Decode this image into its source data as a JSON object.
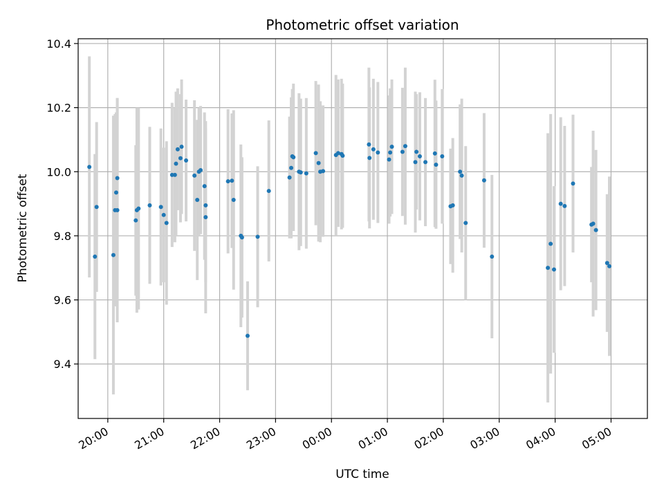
{
  "chart_data": {
    "type": "scatter",
    "title": "Photometric offset variation",
    "xlabel": "UTC time",
    "ylabel": "Photometric offset",
    "x_unit": "hours since 19:00 UTC",
    "xlim": [
      0.47,
      10.65
    ],
    "ylim": [
      9.23,
      10.415
    ],
    "grid": true,
    "colors": {
      "point": "#1f77b4",
      "errorbar": "#d3d3d3",
      "grid": "#b0b0b0"
    },
    "x_ticks": [
      {
        "x": 1,
        "label": "20:00"
      },
      {
        "x": 2,
        "label": "21:00"
      },
      {
        "x": 3,
        "label": "22:00"
      },
      {
        "x": 4,
        "label": "23:00"
      },
      {
        "x": 5,
        "label": "00:00"
      },
      {
        "x": 6,
        "label": "01:00"
      },
      {
        "x": 7,
        "label": "02:00"
      },
      {
        "x": 8,
        "label": "03:00"
      },
      {
        "x": 9,
        "label": "04:00"
      },
      {
        "x": 10,
        "label": "05:00"
      }
    ],
    "y_ticks": [
      {
        "y": 9.4,
        "label": "9.4"
      },
      {
        "y": 9.6,
        "label": "9.6"
      },
      {
        "y": 9.8,
        "label": "9.8"
      },
      {
        "y": 10.0,
        "label": "10.0"
      },
      {
        "y": 10.2,
        "label": "10.2"
      },
      {
        "y": 10.4,
        "label": "10.4"
      }
    ],
    "points": [
      [
        0.67,
        10.015,
        0.345
      ],
      [
        0.77,
        9.735,
        0.32
      ],
      [
        0.8,
        9.89,
        0.265
      ],
      [
        1.1,
        9.74,
        0.435
      ],
      [
        1.13,
        9.88,
        0.3
      ],
      [
        1.15,
        9.935,
        0.25
      ],
      [
        1.17,
        9.88,
        0.35
      ],
      [
        1.17,
        9.98,
        0.25
      ],
      [
        1.5,
        9.848,
        0.235
      ],
      [
        1.52,
        9.88,
        0.32
      ],
      [
        1.55,
        9.885,
        0.315
      ],
      [
        1.75,
        9.895,
        0.245
      ],
      [
        1.95,
        9.89,
        0.245
      ],
      [
        2.0,
        9.865,
        0.21
      ],
      [
        2.05,
        9.84,
        0.255
      ],
      [
        2.15,
        9.99,
        0.225
      ],
      [
        2.2,
        9.99,
        0.21
      ],
      [
        2.22,
        10.025,
        0.225
      ],
      [
        2.25,
        10.07,
        0.19
      ],
      [
        2.3,
        10.042,
        0.2
      ],
      [
        2.32,
        10.078,
        0.21
      ],
      [
        2.4,
        10.035,
        0.19
      ],
      [
        2.55,
        9.988,
        0.235
      ],
      [
        2.6,
        9.912,
        0.25
      ],
      [
        2.63,
        10.0,
        0.2
      ],
      [
        2.66,
        10.005,
        0.2
      ],
      [
        2.73,
        9.955,
        0.23
      ],
      [
        2.75,
        9.858,
        0.3
      ],
      [
        2.75,
        9.895,
        0.24
      ],
      [
        3.15,
        9.97,
        0.225
      ],
      [
        3.22,
        9.972,
        0.21
      ],
      [
        3.25,
        9.912,
        0.28
      ],
      [
        3.38,
        9.8,
        0.285
      ],
      [
        3.4,
        9.795,
        0.25
      ],
      [
        3.5,
        9.488,
        0.17
      ],
      [
        3.68,
        9.797,
        0.22
      ],
      [
        3.88,
        9.94,
        0.22
      ],
      [
        4.25,
        9.982,
        0.19
      ],
      [
        4.28,
        10.012,
        0.22
      ],
      [
        4.3,
        10.048,
        0.21
      ],
      [
        4.32,
        10.045,
        0.23
      ],
      [
        4.42,
        10.0,
        0.245
      ],
      [
        4.45,
        9.998,
        0.23
      ],
      [
        4.55,
        9.995,
        0.235
      ],
      [
        4.72,
        10.058,
        0.225
      ],
      [
        4.77,
        10.027,
        0.245
      ],
      [
        4.8,
        10.0,
        0.22
      ],
      [
        4.85,
        10.002,
        0.205
      ],
      [
        5.08,
        10.052,
        0.25
      ],
      [
        5.12,
        10.058,
        0.23
      ],
      [
        5.18,
        10.055,
        0.235
      ],
      [
        5.2,
        10.05,
        0.225
      ],
      [
        5.67,
        10.085,
        0.24
      ],
      [
        5.68,
        10.043,
        0.22
      ],
      [
        5.75,
        10.07,
        0.22
      ],
      [
        5.83,
        10.06,
        0.22
      ],
      [
        6.03,
        10.038,
        0.2
      ],
      [
        6.05,
        10.06,
        0.2
      ],
      [
        6.08,
        10.078,
        0.21
      ],
      [
        6.27,
        10.062,
        0.2
      ],
      [
        6.32,
        10.08,
        0.245
      ],
      [
        6.5,
        10.03,
        0.22
      ],
      [
        6.52,
        10.062,
        0.18
      ],
      [
        6.58,
        10.048,
        0.2
      ],
      [
        6.68,
        10.03,
        0.2
      ],
      [
        6.85,
        10.057,
        0.23
      ],
      [
        6.87,
        10.022,
        0.2
      ],
      [
        6.98,
        10.048,
        0.21
      ],
      [
        7.13,
        9.892,
        0.18
      ],
      [
        7.17,
        9.895,
        0.21
      ],
      [
        7.3,
        10.0,
        0.21
      ],
      [
        7.33,
        9.988,
        0.24
      ],
      [
        7.4,
        9.84,
        0.24
      ],
      [
        7.73,
        9.973,
        0.21
      ],
      [
        7.87,
        9.735,
        0.255
      ],
      [
        8.87,
        9.7,
        0.42
      ],
      [
        8.92,
        9.775,
        0.405
      ],
      [
        8.98,
        9.695,
        0.26
      ],
      [
        9.1,
        9.9,
        0.27
      ],
      [
        9.17,
        9.893,
        0.25
      ],
      [
        9.32,
        9.963,
        0.215
      ],
      [
        9.65,
        9.835,
        0.18
      ],
      [
        9.68,
        9.838,
        0.29
      ],
      [
        9.73,
        9.818,
        0.25
      ],
      [
        9.93,
        9.715,
        0.215
      ],
      [
        9.97,
        9.705,
        0.28
      ]
    ]
  }
}
